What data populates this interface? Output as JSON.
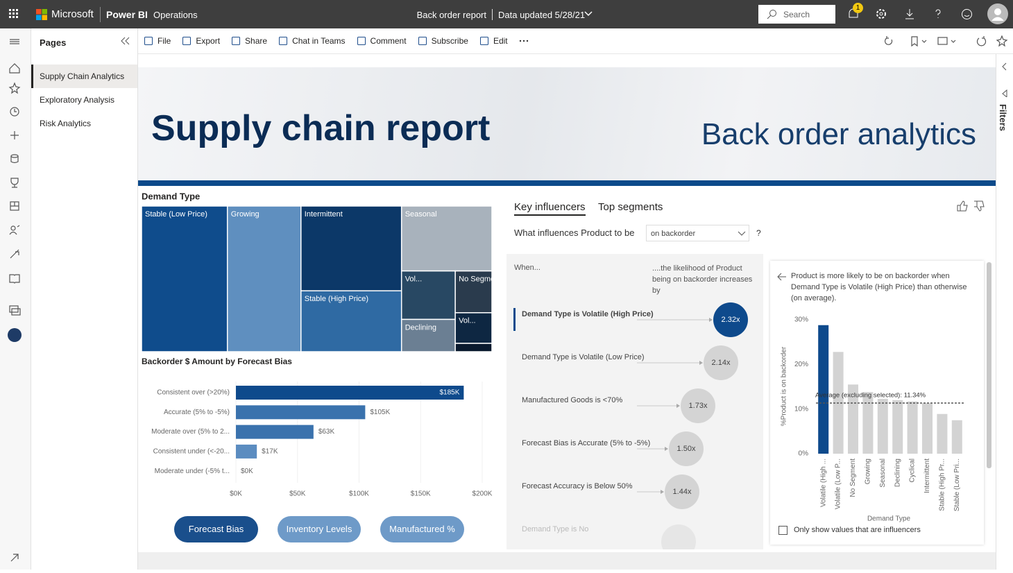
{
  "top_bar": {
    "brand": "Microsoft",
    "product": "Power BI",
    "workspace": "Operations",
    "report_name": "Back order report",
    "updated": "Data updated 5/28/21",
    "search": "Search",
    "notifications": "1"
  },
  "toolbar": [
    "File",
    "Export",
    "Share",
    "Chat in Teams",
    "Comment",
    "Subscribe",
    "Edit"
  ],
  "pages": {
    "title": "Pages",
    "items": [
      "Supply Chain Analytics",
      "Exploratory Analysis",
      "Risk Analytics"
    ]
  },
  "filters": "Filters",
  "banner": {
    "title": "Supply chain report",
    "subtitle": "Back order analytics"
  },
  "chart_data": [
    {
      "type": "treemap",
      "title": "Demand Type",
      "categories": [
        "Stable (Low Price)",
        "Growing",
        "Intermittent",
        "Stable (High Price)",
        "Seasonal",
        "Vol...",
        "Declining",
        "No Segment",
        "Vol...",
        null
      ],
      "values": [
        24.5,
        21.0,
        16.7,
        12.0,
        11.5,
        5.1,
        3.4,
        3.0,
        2.2,
        0.6
      ],
      "colors": [
        "#0f4c8c",
        "#5f8fbf",
        "#0c3868",
        "#2f6aa3",
        "#a8b2bc",
        "#284863",
        "#6b7f93",
        "#2a3b4d",
        "#0e2742",
        "#0a1a2e"
      ]
    },
    {
      "type": "hbar",
      "title": "Backorder $ Amount by Forecast Bias",
      "categories": [
        "Consistent over (>20%)",
        "Accurate (5% to -5%)",
        "Moderate over (5% to 2...",
        "Consistent under (<-20...",
        "Moderate under (-5% t..."
      ],
      "values": [
        185000,
        105000,
        63000,
        17000,
        0
      ],
      "value_labels": [
        "$185K",
        "$105K",
        "$63K",
        "$17K",
        "$0K"
      ],
      "colors": [
        "#0e4a8c",
        "#3a72ad",
        "#3a72ad",
        "#5b8cc0",
        "#5b8cc0"
      ],
      "xlim": [
        0,
        200000
      ],
      "xticks": [
        {
          "value": 0,
          "label": "$0K"
        },
        {
          "value": 50000,
          "label": "$50K"
        },
        {
          "value": 100000,
          "label": "$100K"
        },
        {
          "value": 150000,
          "label": "$150K"
        },
        {
          "value": 200000,
          "label": "$200K"
        }
      ],
      "grid": true
    },
    {
      "type": "column",
      "x_label": "Demand Type",
      "y_label": "%Product is on backorder",
      "categories": [
        "Volatile (High ...",
        "Volatile (Low P...",
        "No Segment",
        "Growing",
        "Seasonal",
        "Declining",
        "Cyclical",
        "Intermittent",
        "Stable (High Pr...",
        "Stable (Low Pri..."
      ],
      "values": [
        28.8,
        22.8,
        15.5,
        13.8,
        12.3,
        12.0,
        11.7,
        11.3,
        8.9,
        7.5
      ],
      "colors": [
        "#0e4a8c",
        "#d3d3d3",
        "#d3d3d3",
        "#d3d3d3",
        "#d3d3d3",
        "#d3d3d3",
        "#d3d3d3",
        "#d3d3d3",
        "#d3d3d3",
        "#d3d3d3"
      ],
      "ylim": [
        0,
        30
      ],
      "yticks": [
        {
          "value": 0,
          "label": "0%"
        },
        {
          "value": 10,
          "label": "10%"
        },
        {
          "value": 20,
          "label": "20%"
        },
        {
          "value": 30,
          "label": "30%"
        }
      ],
      "reference_line": {
        "value": 11.34,
        "label": "Average (excluding selected): 11.34%"
      }
    }
  ],
  "buttons": [
    "Forecast Bias",
    "Inventory Levels",
    "Manufactured %"
  ],
  "key_influencers": {
    "tabs": [
      "Key influencers",
      "Top segments"
    ],
    "question": "What influences Product to be",
    "selection": "on backorder",
    "help": "?",
    "when": "When...",
    "likelihood": "....the likelihood of Product being on backorder increases by",
    "items": [
      {
        "label": "Demand Type is Volatile (High Price)",
        "value": "2.32x"
      },
      {
        "label": "Demand Type is Volatile (Low Price)",
        "value": "2.14x"
      },
      {
        "label": "Manufactured Goods is <70%",
        "value": "1.73x"
      },
      {
        "label": "Forecast Bias is Accurate (5% to -5%)",
        "value": "1.50x"
      },
      {
        "label": "Forecast Accuracy is Below 50%",
        "value": "1.44x"
      },
      {
        "label": "Demand Type is No"
      }
    ],
    "detail": "Product is more likely to be on backorder when Demand Type is Volatile (High Price) than otherwise (on average).",
    "checkbox": "Only show values that are influencers"
  }
}
